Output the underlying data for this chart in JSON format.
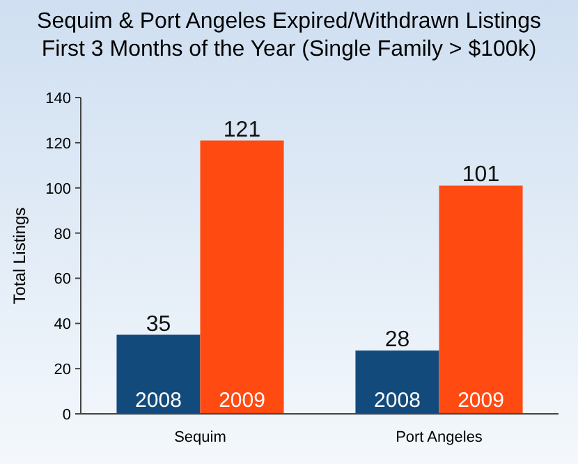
{
  "chart_data": {
    "type": "bar",
    "title": "Sequim & Port Angeles Expired/Withdrawn Listings\nFirst 3 Months of the Year (Single Family > $100k)",
    "ylabel": "Total Listings",
    "categories": [
      "Sequim",
      "Port Angeles"
    ],
    "series": [
      {
        "name": "2008",
        "color": "#134a7c",
        "values": [
          35,
          28
        ]
      },
      {
        "name": "2009",
        "color": "#ff4a12",
        "values": [
          121,
          101
        ]
      }
    ],
    "ylim": [
      0,
      140
    ],
    "yticks": [
      0,
      20,
      40,
      60,
      80,
      100,
      120,
      140
    ],
    "data_labels": true
  }
}
